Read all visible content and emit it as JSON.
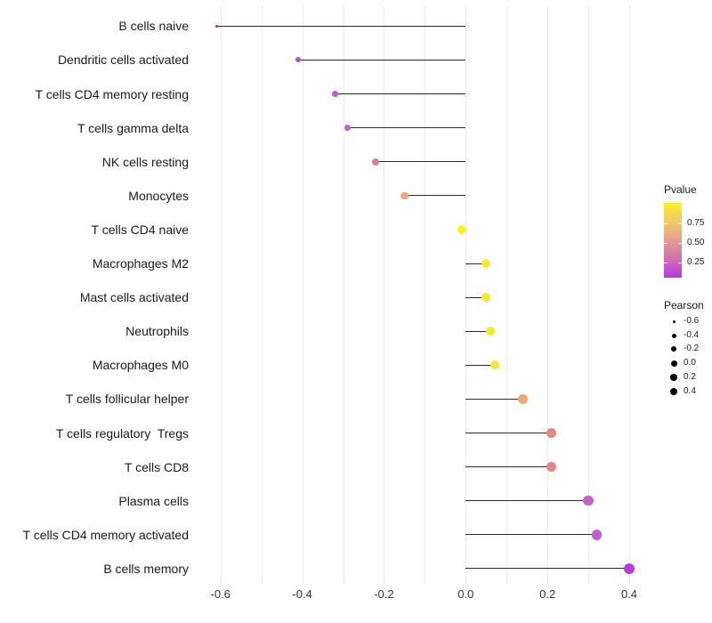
{
  "chart_data": {
    "type": "lollipop",
    "title": "",
    "xlabel": "",
    "ylabel": "",
    "x_tick_labels": [
      "-0.6",
      "-0.4",
      "-0.2",
      "0.0",
      "0.2",
      "0.4"
    ],
    "x_tick_values": [
      -0.6,
      -0.4,
      -0.2,
      0.0,
      0.2,
      0.4
    ],
    "x_minor_step": 0.1,
    "xlim": [
      -0.66,
      0.45
    ],
    "grid": "vertical-only",
    "legend_position": "right",
    "categories": [
      "B cells naive",
      "Dendritic cells activated",
      "T cells CD4 memory resting",
      "T cells gamma delta",
      "NK cells resting",
      "Monocytes",
      "T cells CD4 naive",
      "Macrophages M2",
      "Mast cells activated",
      "Neutrophils",
      "Macrophages M0",
      "T cells follicular helper",
      "T cells regulatory  Tregs",
      "T cells CD8",
      "Plasma cells",
      "T cells CD4 memory activated",
      "B cells memory"
    ],
    "series": [
      {
        "name": "Pearson",
        "values": [
          -0.61,
          -0.41,
          -0.32,
          -0.29,
          -0.22,
          -0.15,
          -0.01,
          0.05,
          0.05,
          0.06,
          0.07,
          0.14,
          0.21,
          0.21,
          0.3,
          0.32,
          0.4
        ]
      },
      {
        "name": "Pvalue",
        "values": [
          0.06,
          0.13,
          0.18,
          0.22,
          0.4,
          0.6,
          0.97,
          0.9,
          0.9,
          0.9,
          0.87,
          0.65,
          0.5,
          0.5,
          0.21,
          0.2,
          0.1
        ]
      }
    ],
    "dot_colors": [
      "#a228e2",
      "#b44fd4",
      "#c05ac8",
      "#c763c3",
      "#d580a0",
      "#eca57e",
      "#fbf024",
      "#f7e72e",
      "#f7e72e",
      "#f7e72e",
      "#f5e43a",
      "#f0a972",
      "#e08888",
      "#e08888",
      "#c75fc9",
      "#c45ecb",
      "#bb3bd9"
    ],
    "colors": {
      "stem": "#2b2b2b",
      "grid": "#ececec",
      "axis_text": "#333333",
      "label_text": "#1a1a1a",
      "background": "#ffffff"
    },
    "legend": {
      "pvalue": {
        "title": "Pvalue",
        "tick_labels": [
          "0.75",
          "0.50",
          "0.25"
        ],
        "gradient_top_to_bottom": [
          "#f9ee26",
          "#f2cb69",
          "#e59c90",
          "#d06fb0",
          "#b437e6"
        ]
      },
      "pearson": {
        "title": "Pearson",
        "size_labels": [
          "-0.6",
          "-0.4",
          "-0.2",
          "0.0",
          "0.2",
          "0.4"
        ]
      }
    }
  }
}
